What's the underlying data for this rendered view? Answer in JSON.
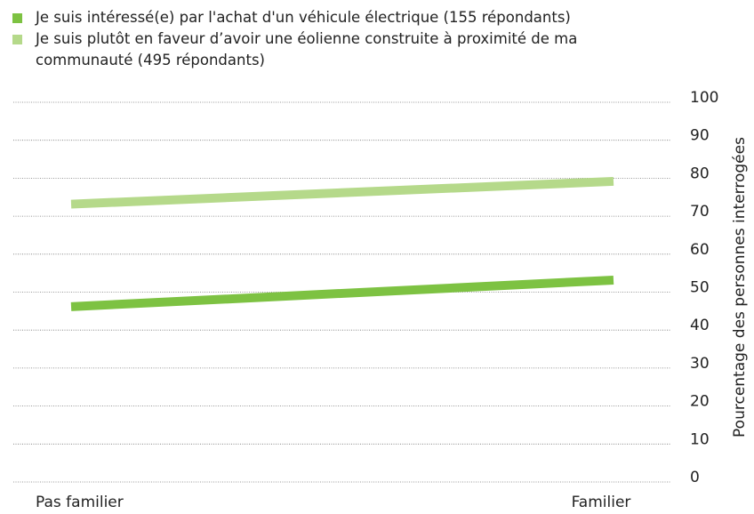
{
  "chart_data": {
    "type": "line",
    "y_label": "Pourcentage des personnes interrogées",
    "categories": [
      "Pas familier",
      "Familier"
    ],
    "series": [
      {
        "name": "Je suis intéressé(e) par l'achat d'un véhicule électrique (155 répondants)",
        "color": "#7dc242",
        "values": [
          45,
          52
        ]
      },
      {
        "name": "Je suis plutôt en faveur d’avoir une éolienne construite à proximité de ma communauté (495 répondants)",
        "color": "#b5d98a",
        "values": [
          72,
          78
        ]
      }
    ],
    "ylim": [
      0,
      100
    ],
    "yticks": [
      0,
      10,
      20,
      30,
      40,
      50,
      60,
      70,
      80,
      90,
      100
    ],
    "grid": true,
    "legend": "top"
  }
}
